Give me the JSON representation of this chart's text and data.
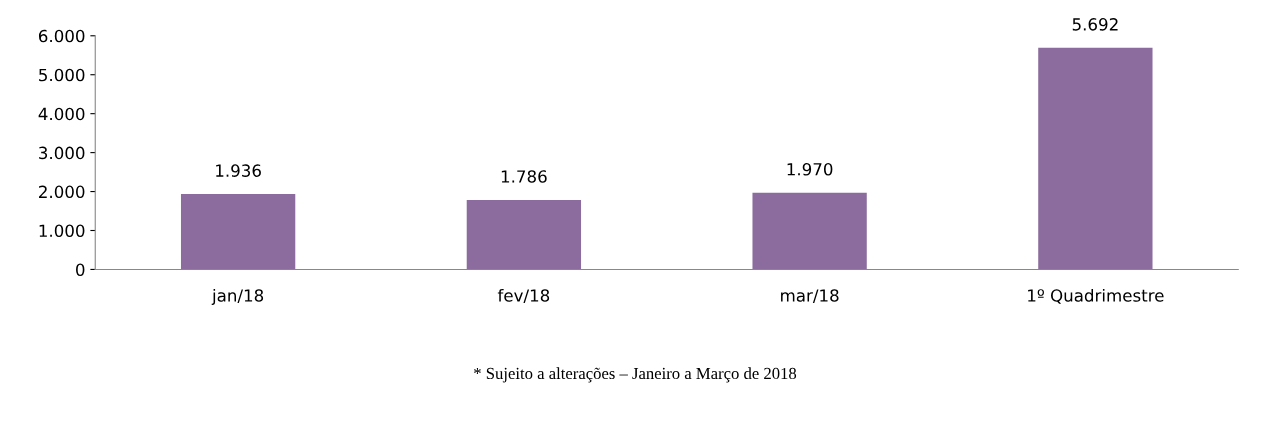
{
  "chart_data": {
    "type": "bar",
    "categories": [
      "jan/18",
      "fev/18",
      "mar/18",
      "1º Quadrimestre"
    ],
    "values": [
      1936,
      1786,
      1970,
      5692
    ],
    "value_labels": [
      "1.936",
      "1.786",
      "1.970",
      "5.692"
    ],
    "color": "#8c6c9e",
    "ylim": [
      0,
      6000
    ],
    "yticks": [
      0,
      {
        "value": 1000,
        "label": "1.000"
      },
      {
        "value": 2000,
        "label": "2.000"
      },
      {
        "value": 3000,
        "label": "3.000"
      },
      {
        "value": 4000,
        "label": "4.000"
      },
      {
        "value": 5000,
        "label": "5.000"
      },
      {
        "value": 6000,
        "label": "6.000"
      }
    ],
    "grid": false,
    "annotations": [
      "* Sujeito a alterações – Janeiro a Março de 2018"
    ]
  }
}
